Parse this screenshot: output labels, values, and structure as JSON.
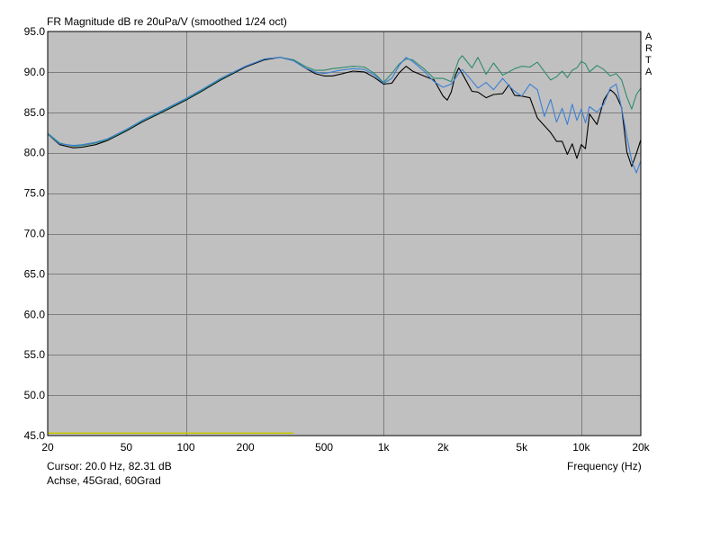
{
  "title": "FR Magnitude dB re 20uPa/V (smoothed 1/24 oct)",
  "side_label": [
    "A",
    "R",
    "T",
    "A"
  ],
  "cursor_text": "Cursor: 20.0 Hz, 82.31 dB",
  "legend_text": "Achse, 45Grad, 60Grad",
  "colors": {
    "plot_bg": "#c0c0c0",
    "grid": "#7f7f7f",
    "frame": "#000000",
    "marker": "#c8c800"
  },
  "chart_data": {
    "type": "line",
    "title": "FR Magnitude dB re 20uPa/V (smoothed 1/24 oct)",
    "xlabel": "Frequency (Hz)",
    "ylabel": "",
    "x_scale": "log",
    "xlim": [
      20,
      20000
    ],
    "ylim": [
      45,
      95
    ],
    "grid": true,
    "y_ticks": [
      "95.0",
      "90.0",
      "85.0",
      "80.0",
      "75.0",
      "70.0",
      "65.0",
      "60.0",
      "55.0",
      "50.0",
      "45.0"
    ],
    "x_ticks": [
      {
        "value": 20,
        "label": "20"
      },
      {
        "value": 50,
        "label": "50"
      },
      {
        "value": 100,
        "label": "100"
      },
      {
        "value": 200,
        "label": "200"
      },
      {
        "value": 500,
        "label": "500"
      },
      {
        "value": 1000,
        "label": "1k"
      },
      {
        "value": 2000,
        "label": "2k"
      },
      {
        "value": 5000,
        "label": "5k"
      },
      {
        "value": 10000,
        "label": "10k"
      },
      {
        "value": 20000,
        "label": "20k"
      }
    ],
    "marker_segment": {
      "x": [
        20,
        350
      ],
      "y": 45.3
    },
    "series": [
      {
        "name": "Achse",
        "color": "#000000",
        "x": [
          20,
          23,
          27,
          30,
          35,
          40,
          50,
          60,
          70,
          80,
          100,
          120,
          150,
          200,
          250,
          300,
          350,
          400,
          450,
          500,
          550,
          600,
          700,
          800,
          900,
          1000,
          1100,
          1200,
          1300,
          1400,
          1600,
          1800,
          2000,
          2100,
          2200,
          2300,
          2400,
          2500,
          2800,
          3000,
          3300,
          3600,
          4000,
          4300,
          4600,
          5000,
          5500,
          6000,
          7000,
          7500,
          8000,
          8500,
          9000,
          9500,
          10000,
          10500,
          11000,
          12000,
          13000,
          14000,
          14500,
          15000,
          16000,
          17000,
          18000,
          19000,
          20000
        ],
        "y": [
          82.3,
          81.0,
          80.6,
          80.7,
          81.0,
          81.5,
          82.7,
          83.8,
          84.6,
          85.3,
          86.5,
          87.6,
          89.0,
          90.6,
          91.5,
          91.8,
          91.4,
          90.5,
          89.8,
          89.5,
          89.5,
          89.7,
          90.1,
          90.0,
          89.3,
          88.5,
          88.6,
          89.9,
          90.7,
          90.1,
          89.5,
          89.0,
          87.0,
          86.5,
          87.5,
          89.5,
          90.5,
          89.8,
          87.6,
          87.5,
          86.8,
          87.2,
          87.3,
          88.4,
          87.1,
          87.0,
          86.8,
          84.3,
          82.5,
          81.4,
          81.4,
          79.8,
          81.1,
          79.3,
          81.0,
          80.5,
          84.8,
          83.5,
          86.5,
          87.8,
          87.5,
          87.1,
          85.6,
          80.1,
          78.3,
          79.9,
          81.6
        ]
      },
      {
        "name": "45Grad",
        "color": "#2e8b6e",
        "x": [
          20,
          23,
          27,
          30,
          35,
          40,
          50,
          60,
          70,
          80,
          100,
          120,
          150,
          200,
          250,
          300,
          350,
          400,
          450,
          500,
          550,
          600,
          700,
          800,
          900,
          1000,
          1100,
          1200,
          1300,
          1400,
          1600,
          1800,
          2000,
          2200,
          2400,
          2500,
          2800,
          3000,
          3300,
          3600,
          4000,
          4300,
          4600,
          5000,
          5500,
          6000,
          7000,
          7500,
          8000,
          8500,
          9000,
          9500,
          10000,
          10500,
          11000,
          12000,
          13000,
          14000,
          15000,
          16000,
          17000,
          18000,
          19000,
          20000
        ],
        "y": [
          82.4,
          81.2,
          80.8,
          80.9,
          81.2,
          81.6,
          82.8,
          83.9,
          84.7,
          85.4,
          86.6,
          87.7,
          89.1,
          90.7,
          91.6,
          91.8,
          91.5,
          90.7,
          90.2,
          90.2,
          90.4,
          90.5,
          90.7,
          90.6,
          89.8,
          88.7,
          89.8,
          91.0,
          91.6,
          91.5,
          90.4,
          89.2,
          89.2,
          88.8,
          91.5,
          92.0,
          90.5,
          91.8,
          89.7,
          91.1,
          89.6,
          90.0,
          90.4,
          90.7,
          90.6,
          91.2,
          89.0,
          89.4,
          90.1,
          89.3,
          90.2,
          90.5,
          91.3,
          91.0,
          90.0,
          90.8,
          90.3,
          89.5,
          89.8,
          89.0,
          86.9,
          85.4,
          87.2,
          88.0
        ]
      },
      {
        "name": "60Grad",
        "color": "#3a7fd5",
        "x": [
          20,
          23,
          27,
          30,
          35,
          40,
          50,
          60,
          70,
          80,
          100,
          120,
          150,
          200,
          250,
          300,
          350,
          400,
          450,
          500,
          550,
          600,
          700,
          800,
          900,
          1000,
          1100,
          1200,
          1300,
          1400,
          1600,
          1800,
          2000,
          2200,
          2400,
          2500,
          2800,
          3000,
          3300,
          3600,
          4000,
          4300,
          4600,
          5000,
          5500,
          6000,
          6500,
          7000,
          7500,
          8000,
          8500,
          9000,
          9500,
          10000,
          10500,
          11000,
          12000,
          13000,
          14000,
          15000,
          16000,
          17000,
          18000,
          19000,
          20000
        ],
        "y": [
          82.3,
          81.1,
          80.9,
          81.0,
          81.3,
          81.7,
          82.9,
          84.0,
          84.8,
          85.5,
          86.7,
          87.8,
          89.2,
          90.7,
          91.6,
          91.8,
          91.4,
          90.5,
          90.0,
          89.8,
          90.0,
          90.2,
          90.4,
          90.3,
          89.6,
          88.6,
          89.2,
          90.8,
          91.8,
          91.3,
          90.1,
          88.8,
          88.1,
          88.5,
          89.8,
          90.3,
          88.9,
          88.0,
          88.7,
          87.8,
          89.2,
          88.3,
          87.6,
          87.0,
          88.5,
          87.8,
          84.5,
          86.6,
          83.8,
          85.5,
          83.5,
          86.0,
          84.0,
          85.4,
          83.7,
          85.7,
          85.0,
          86.0,
          88.0,
          88.5,
          85.5,
          82.0,
          79.0,
          77.5,
          79.0
        ]
      }
    ]
  }
}
